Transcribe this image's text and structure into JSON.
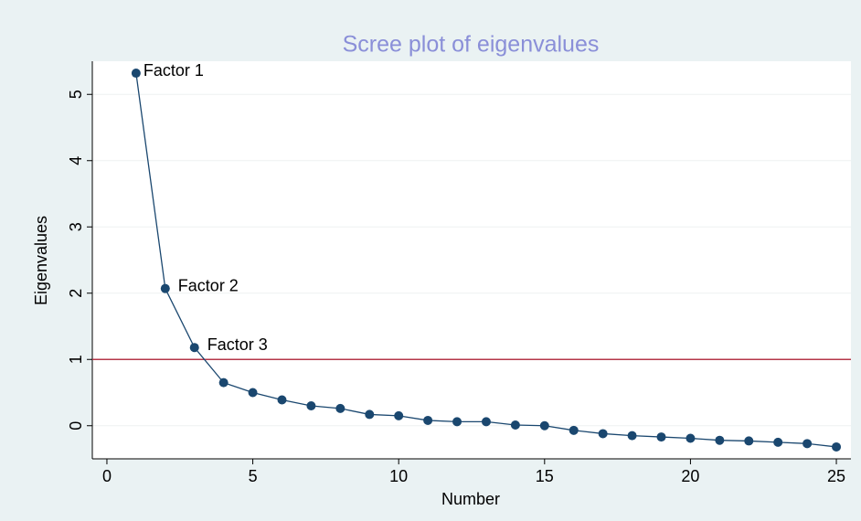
{
  "chart_data": {
    "type": "line",
    "title": "Scree plot of eigenvalues",
    "x_label": "Number",
    "y_label": "Eigenvalues",
    "x": [
      1,
      2,
      3,
      4,
      5,
      6,
      7,
      8,
      9,
      10,
      11,
      12,
      13,
      14,
      15,
      16,
      17,
      18,
      19,
      20,
      21,
      22,
      23,
      24,
      25
    ],
    "series": [
      {
        "name": "Eigenvalues",
        "color": "#1a476f",
        "values": [
          5.32,
          2.07,
          1.18,
          0.65,
          0.5,
          0.39,
          0.3,
          0.26,
          0.17,
          0.15,
          0.08,
          0.06,
          0.06,
          0.01,
          0.0,
          -0.07,
          -0.12,
          -0.15,
          -0.17,
          -0.19,
          -0.22,
          -0.23,
          -0.25,
          -0.27,
          -0.32
        ]
      }
    ],
    "point_labels": [
      "Factor 1",
      "Factor 2",
      "Factor 3",
      null,
      null,
      null,
      null,
      null,
      null,
      null,
      null,
      null,
      null,
      null,
      null,
      null,
      null,
      null,
      null,
      null,
      null,
      null,
      null,
      null,
      null
    ],
    "xlim": [
      -0.5,
      25.5
    ],
    "xticks": [
      0,
      5,
      10,
      15,
      20,
      25
    ],
    "ylim": [
      -0.5,
      5.5
    ],
    "yticks": [
      0,
      1,
      2,
      3,
      4,
      5
    ],
    "grid": true,
    "reference_line": {
      "y": 1,
      "color": "#b5374a"
    },
    "title_color": "#8a8fd8"
  }
}
